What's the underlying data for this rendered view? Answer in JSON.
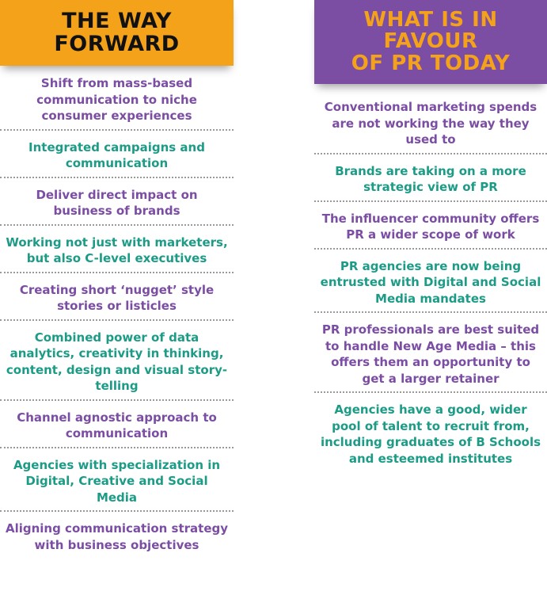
{
  "left": {
    "title_lines": [
      "THE WAY",
      "FORWARD"
    ],
    "items": [
      {
        "text": "Shift from mass-based communication to niche consumer experiences",
        "color": "#7b4da3"
      },
      {
        "text": "Integrated campaigns and communication",
        "color": "#1c9b86"
      },
      {
        "text": "Deliver direct impact on business of brands",
        "color": "#7b4da3"
      },
      {
        "text": "Working not just with marketers, but also C-level executives",
        "color": "#1c9b86"
      },
      {
        "text": "Creating short ‘nugget’ style stories or listicles",
        "color": "#7b4da3"
      },
      {
        "text": "Combined power of data analytics, creativity in thinking, content, design and visual story-telling",
        "color": "#1c9b86"
      },
      {
        "text": "Channel agnostic approach to communication",
        "color": "#7b4da3"
      },
      {
        "text": "Agencies with specialization in Digital, Creative and Social Media",
        "color": "#1c9b86"
      },
      {
        "text": "Aligning communication strategy with business objectives",
        "color": "#7b4da3"
      }
    ]
  },
  "right": {
    "title_lines": [
      "WHAT IS IN",
      "FAVOUR",
      "OF PR TODAY"
    ],
    "items": [
      {
        "text": "Conventional marketing spends are not working the way they used to",
        "color": "#7b4da3"
      },
      {
        "text": "Brands are taking on a more strategic view of PR",
        "color": "#1c9b86"
      },
      {
        "text": "The influencer community offers PR a wider scope of work",
        "color": "#7b4da3"
      },
      {
        "text": "PR agencies are now being entrusted with Digital and Social Media mandates",
        "color": "#1c9b86"
      },
      {
        "text": "PR professionals are best suited to handle New Age Media – this offers them an opportunity to get a larger retainer",
        "color": "#7b4da3"
      },
      {
        "text": "Agencies have a good, wider pool of talent to recruit from, including graduates of B Schools and esteemed institutes",
        "color": "#1c9b86"
      }
    ]
  },
  "colors": {
    "orange": "#f4a21a",
    "purple": "#7b4da3",
    "teal": "#1c9b86"
  }
}
